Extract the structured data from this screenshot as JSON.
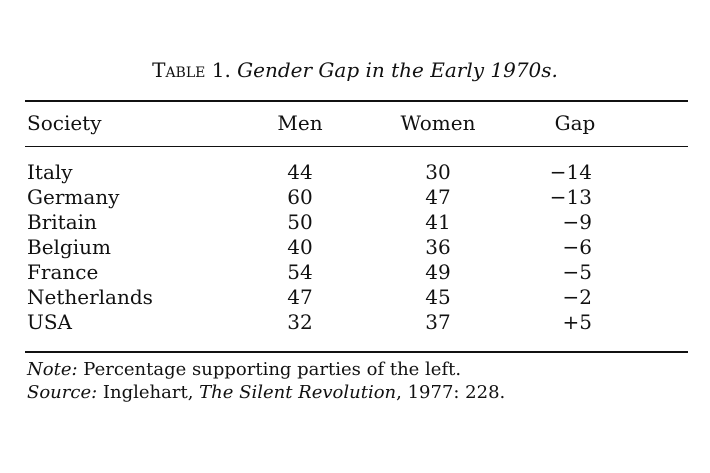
{
  "caption": {
    "label": "Table 1.",
    "title": "Gender Gap in the Early 1970s."
  },
  "table": {
    "columns": [
      "Society",
      "Men",
      "Women",
      "Gap"
    ],
    "rows": [
      {
        "society": "Italy",
        "men": "44",
        "women": "30",
        "gap": "−14"
      },
      {
        "society": "Germany",
        "men": "60",
        "women": "47",
        "gap": "−13"
      },
      {
        "society": "Britain",
        "men": "50",
        "women": "41",
        "gap": "−9"
      },
      {
        "society": "Belgium",
        "men": "40",
        "women": "36",
        "gap": "−6"
      },
      {
        "society": "France",
        "men": "54",
        "women": "49",
        "gap": "−5"
      },
      {
        "society": "Netherlands",
        "men": "47",
        "women": "45",
        "gap": "−2"
      },
      {
        "society": "USA",
        "men": "32",
        "women": "37",
        "gap": "+5"
      }
    ]
  },
  "notes": {
    "note_label": "Note:",
    "note_text": " Percentage supporting parties of the left.",
    "source_label": "Source:",
    "source_author": " Inglehart, ",
    "source_title": "The Silent Revolution",
    "source_rest": ", 1977: 228."
  }
}
